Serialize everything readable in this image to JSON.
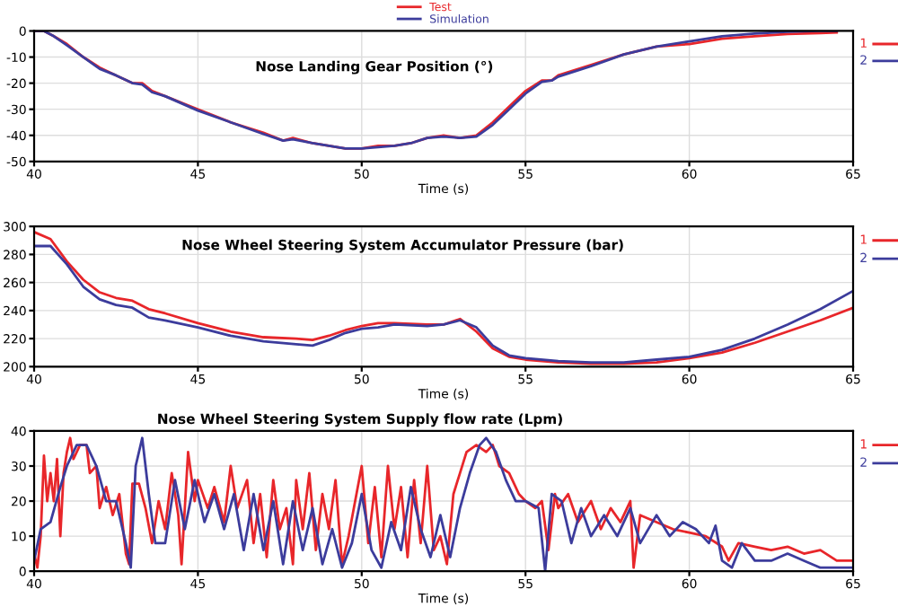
{
  "chart_data": [
    {
      "type": "line",
      "title": "Nose Landing Gear Position (°)",
      "xlabel": "Time (s)",
      "xlim": [
        40,
        65
      ],
      "xticks": [
        40,
        45,
        50,
        55,
        60,
        65
      ],
      "ylim": [
        -50,
        0
      ],
      "yticks": [
        0,
        -10,
        -20,
        -30,
        -40,
        -50
      ],
      "grid": true,
      "legend": "top",
      "annotations": [
        "1",
        "2"
      ],
      "series": [
        {
          "name": "Test",
          "color": "#e8262a",
          "x": [
            40,
            40.3,
            40.6,
            41,
            41.5,
            42,
            42.5,
            43,
            43.3,
            43.6,
            44,
            45,
            46,
            47,
            47.6,
            47.9,
            48.5,
            49.5,
            50,
            50.5,
            51,
            51.5,
            52,
            52.5,
            53,
            53.5,
            54,
            54.5,
            55,
            55.5,
            55.8,
            56,
            57,
            58,
            59,
            60,
            61,
            62,
            63,
            64,
            64.5
          ],
          "values": [
            0,
            0,
            -2,
            -5,
            -10,
            -14,
            -17,
            -20,
            -20,
            -23,
            -25,
            -30,
            -35,
            -39,
            -42,
            -41,
            -43,
            -45,
            -45,
            -44,
            -44,
            -43,
            -41,
            -40,
            -41,
            -40,
            -35,
            -29,
            -23,
            -19,
            -19,
            -17,
            -13,
            -9,
            -6,
            -5,
            -3,
            -2,
            -1.2,
            -0.8,
            -0.6
          ]
        },
        {
          "name": "Simulation",
          "color": "#3c3c9c",
          "x": [
            40,
            40.3,
            40.6,
            41,
            41.5,
            42,
            42.5,
            43,
            43.3,
            43.6,
            44,
            45,
            46,
            47,
            47.6,
            47.9,
            48.5,
            49.5,
            50,
            50.5,
            51,
            51.5,
            52,
            52.5,
            53,
            53.5,
            54,
            54.5,
            55,
            55.5,
            55.8,
            56,
            57,
            58,
            59,
            60,
            61,
            62,
            63,
            64,
            64.5
          ],
          "values": [
            0,
            0,
            -2,
            -5.5,
            -10,
            -14.5,
            -17,
            -20,
            -20.5,
            -23.5,
            -25,
            -30.5,
            -35,
            -39.5,
            -42,
            -41.5,
            -43,
            -45,
            -45,
            -44.5,
            -44,
            -43,
            -41,
            -40.5,
            -41,
            -40.5,
            -36,
            -30,
            -24,
            -19.5,
            -19,
            -17.5,
            -13.5,
            -9,
            -6,
            -4,
            -2,
            -1,
            -0.3,
            0,
            0
          ]
        }
      ]
    },
    {
      "type": "line",
      "title": "Nose Wheel Steering System Accumulator Pressure (bar)",
      "xlabel": "Time (s)",
      "xlim": [
        40,
        65
      ],
      "xticks": [
        40,
        45,
        50,
        55,
        60,
        65
      ],
      "ylim": [
        200,
        300
      ],
      "yticks": [
        200,
        220,
        240,
        260,
        280,
        300
      ],
      "grid": true,
      "annotations": [
        "1",
        "2"
      ],
      "series": [
        {
          "color": "#e8262a",
          "x": [
            40,
            40.5,
            41,
            41.5,
            42,
            42.5,
            43,
            43.5,
            44,
            45,
            46,
            47,
            48,
            48.5,
            49,
            49.5,
            50,
            50.5,
            51,
            52,
            52.5,
            53,
            53.5,
            54,
            54.5,
            55,
            56,
            57,
            58,
            59,
            60,
            61,
            62,
            63,
            64,
            65
          ],
          "values": [
            296,
            291,
            275,
            262,
            253,
            249,
            247,
            241,
            238,
            231,
            225,
            221,
            220,
            219,
            222,
            226,
            229,
            231,
            231,
            230,
            230,
            234,
            225,
            213,
            207,
            205,
            203,
            202,
            202,
            203,
            206,
            210,
            217,
            225,
            233,
            242
          ]
        },
        {
          "color": "#3c3c9c",
          "x": [
            40,
            40.5,
            41,
            41.5,
            42,
            42.5,
            43,
            43.5,
            44,
            45,
            46,
            47,
            48,
            48.5,
            49,
            49.5,
            50,
            50.5,
            51,
            52,
            52.5,
            53,
            53.5,
            54,
            54.5,
            55,
            56,
            57,
            58,
            59,
            60,
            61,
            62,
            63,
            64,
            65
          ],
          "values": [
            286,
            286,
            273,
            257,
            248,
            244,
            242,
            235,
            233,
            228,
            222,
            218,
            216,
            215,
            219,
            224,
            227,
            228,
            230,
            229,
            230,
            233,
            228,
            215,
            208,
            206,
            204,
            203,
            203,
            205,
            207,
            212,
            220,
            230,
            241,
            254
          ]
        }
      ]
    },
    {
      "type": "line",
      "title": "Nose Wheel Steering System Supply flow rate (Lpm)",
      "xlabel": "Time (s)",
      "xlim": [
        40,
        65
      ],
      "xticks": [
        40,
        45,
        50,
        55,
        60,
        65
      ],
      "ylim": [
        0,
        40
      ],
      "yticks": [
        0,
        10,
        20,
        30,
        40
      ],
      "grid": true,
      "annotations": [
        "1",
        "2"
      ],
      "series": [
        {
          "color": "#e8262a",
          "x": [
            40,
            40.1,
            40.2,
            40.3,
            40.4,
            40.5,
            40.6,
            40.7,
            40.8,
            40.9,
            41,
            41.1,
            41.2,
            41.4,
            41.6,
            41.7,
            41.9,
            42,
            42.2,
            42.4,
            42.6,
            42.8,
            42.9,
            43,
            43.2,
            43.4,
            43.6,
            43.8,
            44,
            44.2,
            44.4,
            44.5,
            44.7,
            44.9,
            45,
            45.3,
            45.5,
            45.8,
            46,
            46.2,
            46.5,
            46.7,
            46.9,
            47.1,
            47.3,
            47.5,
            47.7,
            47.9,
            48,
            48.2,
            48.4,
            48.6,
            48.8,
            49,
            49.2,
            49.4,
            49.6,
            49.8,
            50,
            50.2,
            50.4,
            50.6,
            50.8,
            51,
            51.2,
            51.4,
            51.6,
            51.8,
            52,
            52.2,
            52.4,
            52.6,
            52.8,
            53,
            53.2,
            53.5,
            53.8,
            54,
            54.2,
            54.5,
            54.8,
            55,
            55.3,
            55.5,
            55.7,
            55.9,
            56,
            56.3,
            56.6,
            57,
            57.3,
            57.6,
            57.9,
            58.2,
            58.3,
            58.5,
            59,
            59.5,
            60,
            60.5,
            61,
            61.2,
            61.5,
            62,
            62.5,
            63,
            63.5,
            64,
            64.5,
            65
          ],
          "values": [
            5,
            1,
            10,
            33,
            20,
            28,
            20,
            32,
            10,
            28,
            34,
            38,
            32,
            36,
            36,
            28,
            30,
            18,
            24,
            16,
            22,
            5,
            2,
            25,
            25,
            18,
            8,
            20,
            12,
            28,
            16,
            2,
            34,
            20,
            26,
            18,
            24,
            14,
            30,
            18,
            26,
            8,
            22,
            4,
            26,
            12,
            18,
            2,
            26,
            12,
            28,
            6,
            22,
            12,
            26,
            2,
            10,
            20,
            30,
            8,
            24,
            4,
            30,
            12,
            24,
            4,
            26,
            8,
            30,
            6,
            10,
            2,
            22,
            28,
            34,
            36,
            34,
            36,
            30,
            28,
            22,
            20,
            18,
            20,
            6,
            22,
            18,
            22,
            14,
            20,
            12,
            18,
            14,
            20,
            1,
            16,
            14,
            12,
            11,
            10,
            7,
            3,
            8,
            7,
            6,
            7,
            5,
            6,
            3,
            3
          ]
        },
        {
          "color": "#3c3c9c",
          "x": [
            40,
            40.2,
            40.5,
            40.8,
            41,
            41.3,
            41.6,
            41.9,
            42.2,
            42.5,
            42.8,
            42.95,
            43.1,
            43.3,
            43.5,
            43.7,
            44,
            44.3,
            44.6,
            44.9,
            45.2,
            45.5,
            45.8,
            46.1,
            46.4,
            46.7,
            47,
            47.3,
            47.6,
            47.9,
            48.2,
            48.5,
            48.8,
            49.1,
            49.4,
            49.7,
            50,
            50.3,
            50.6,
            50.9,
            51.2,
            51.5,
            51.8,
            52.1,
            52.4,
            52.7,
            53,
            53.3,
            53.6,
            53.8,
            54.1,
            54.4,
            54.7,
            55,
            55.4,
            55.6,
            55.8,
            56.1,
            56.4,
            56.7,
            57,
            57.4,
            57.8,
            58.2,
            58.5,
            59,
            59.4,
            59.8,
            60.2,
            60.6,
            60.8,
            61,
            61.3,
            61.6,
            62,
            62.5,
            63,
            63.5,
            64,
            64.5,
            65
          ],
          "values": [
            3,
            12,
            14,
            24,
            30,
            36,
            36,
            30,
            20,
            20,
            8,
            1,
            30,
            38,
            22,
            8,
            8,
            26,
            12,
            26,
            14,
            22,
            12,
            22,
            6,
            22,
            6,
            20,
            2,
            20,
            6,
            18,
            2,
            12,
            1,
            8,
            22,
            6,
            1,
            14,
            6,
            24,
            12,
            4,
            16,
            4,
            18,
            28,
            36,
            38,
            34,
            26,
            20,
            20,
            18,
            0,
            22,
            20,
            8,
            18,
            10,
            16,
            10,
            18,
            8,
            16,
            10,
            14,
            12,
            8,
            13,
            3,
            1,
            8,
            3,
            3,
            5,
            3,
            1,
            1,
            1
          ]
        }
      ]
    }
  ]
}
